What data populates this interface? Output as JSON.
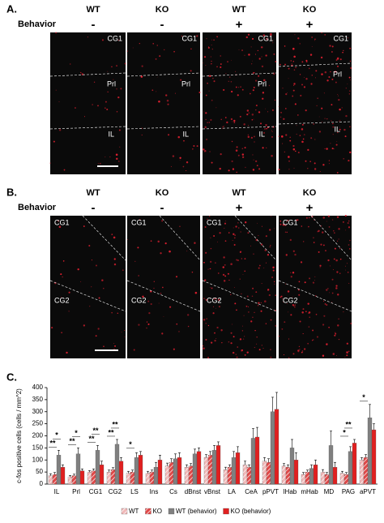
{
  "panel_a": {
    "label": "A.",
    "row_label": "Behavior",
    "columns": [
      {
        "genotype": "WT",
        "behavior": "-"
      },
      {
        "genotype": "KO",
        "behavior": "-"
      },
      {
        "genotype": "WT",
        "behavior": "+"
      },
      {
        "genotype": "KO",
        "behavior": "+"
      }
    ],
    "region_labels": [
      "CG1",
      "Prl",
      "IL"
    ]
  },
  "panel_b": {
    "label": "B.",
    "row_label": "Behavior",
    "columns": [
      {
        "genotype": "WT",
        "behavior": "-"
      },
      {
        "genotype": "KO",
        "behavior": "-"
      },
      {
        "genotype": "WT",
        "behavior": "+"
      },
      {
        "genotype": "KO",
        "behavior": "+"
      }
    ],
    "region_labels": [
      "CG1",
      "CG2"
    ]
  },
  "chart_data": {
    "type": "bar",
    "panel_label": "C.",
    "y_label": "c-fos positive cells (cells / mm^2)",
    "categories": [
      "IL",
      "Prl",
      "CG1",
      "CG2",
      "LS",
      "Ins",
      "Cs",
      "dBnst",
      "vBnst",
      "LA",
      "CeA",
      "pPVT",
      "lHab",
      "mHab",
      "MD",
      "PAG",
      "aPVT"
    ],
    "series": [
      {
        "name": "WT",
        "color": "#f0b8b8",
        "hatch": true,
        "values": [
          35,
          30,
          50,
          50,
          45,
          45,
          75,
          70,
          110,
          60,
          80,
          95,
          75,
          40,
          50,
          45,
          100
        ],
        "errors": [
          8,
          6,
          6,
          8,
          8,
          8,
          12,
          10,
          12,
          10,
          15,
          15,
          10,
          8,
          10,
          8,
          10
        ]
      },
      {
        "name": "KO",
        "color": "#e04848",
        "hatch": true,
        "values": [
          40,
          35,
          55,
          60,
          50,
          50,
          90,
          75,
          120,
          70,
          70,
          90,
          70,
          50,
          40,
          40,
          110
        ],
        "errors": [
          8,
          6,
          8,
          8,
          8,
          8,
          15,
          10,
          15,
          10,
          10,
          15,
          10,
          8,
          8,
          8,
          12
        ]
      },
      {
        "name": "WT (behavior)",
        "color": "#808080",
        "hatch": false,
        "values": [
          120,
          125,
          140,
          165,
          110,
          70,
          105,
          125,
          140,
          110,
          190,
          300,
          150,
          65,
          160,
          135,
          275
        ],
        "errors": [
          20,
          25,
          20,
          20,
          20,
          20,
          20,
          20,
          20,
          25,
          40,
          60,
          35,
          15,
          60,
          20,
          55
        ]
      },
      {
        "name": "KO (behavior)",
        "color": "#e02020",
        "hatch": false,
        "values": [
          70,
          55,
          80,
          95,
          120,
          100,
          110,
          135,
          160,
          130,
          195,
          310,
          100,
          80,
          70,
          170,
          225
        ],
        "errors": [
          10,
          8,
          15,
          15,
          15,
          20,
          20,
          15,
          15,
          25,
          40,
          70,
          30,
          20,
          20,
          15,
          25
        ]
      }
    ],
    "significance": [
      [
        "**",
        "*"
      ],
      [
        "**",
        "*"
      ],
      [
        "**",
        "**"
      ],
      [
        "**",
        "**"
      ],
      [
        "*"
      ],
      null,
      null,
      null,
      null,
      null,
      null,
      null,
      null,
      null,
      null,
      [
        "*",
        "**"
      ],
      [
        "*"
      ]
    ],
    "ylim": [
      0,
      400
    ],
    "yticks": [
      0,
      50,
      100,
      150,
      200,
      250,
      300,
      350,
      400
    ]
  }
}
